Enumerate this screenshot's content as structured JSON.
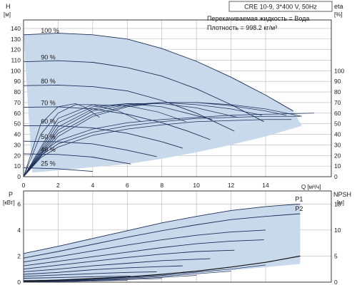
{
  "header": {
    "model": "CRE 10-9, 3*400 V, 50Hz",
    "liquid": "Перекачиваемая жидкость = Вода",
    "density": "Плотность = 998.2 кг/м³"
  },
  "colors": {
    "envelope": "#c9d9ec",
    "curve": "#1c2f5a",
    "grid": "#b5b5b5",
    "frame": "#3a3a3a"
  },
  "chart_data": [
    {
      "type": "line",
      "name": "head",
      "xlabel": "Q [м³/ч]",
      "ylabel_top": "H",
      "ylabel_unit": "[м]",
      "y2label_top": "eta",
      "y2label_unit": "[%]",
      "xlim": [
        0,
        17.8
      ],
      "ylim": [
        0,
        148
      ],
      "y2lim": [
        0,
        148
      ],
      "xticks": [
        0,
        2,
        4,
        6,
        8,
        10,
        12,
        14
      ],
      "yticks": [
        0,
        10,
        20,
        30,
        40,
        50,
        60,
        70,
        80,
        90,
        100,
        110,
        120,
        130,
        140
      ],
      "y2ticks": [
        0,
        10,
        20,
        30,
        40,
        50,
        60,
        70,
        80,
        90,
        100
      ],
      "grid": true,
      "envelope": {
        "x": [
          0,
          2,
          4,
          6,
          8,
          10,
          12,
          14,
          15.6,
          16.1,
          14,
          12,
          10,
          8,
          6,
          4,
          2,
          0.5
        ],
        "y": [
          134,
          135.5,
          134,
          130,
          121,
          109,
          94,
          77,
          62,
          48,
          38,
          30,
          23,
          17,
          12,
          9,
          6,
          4
        ]
      },
      "speed_curves": [
        {
          "label": "100 %",
          "x": [
            0,
            2,
            4,
            6,
            8,
            10,
            12,
            14,
            15.6
          ],
          "y": [
            134,
            135.5,
            134,
            130,
            121,
            109,
            94,
            77,
            62
          ]
        },
        {
          "label": "90 %",
          "x": [
            0,
            2,
            4,
            6,
            8,
            10,
            12,
            13.9
          ],
          "y": [
            108.5,
            109.5,
            108,
            103,
            95,
            83,
            68,
            52
          ]
        },
        {
          "label": "80 %",
          "x": [
            0,
            2,
            4,
            6,
            8,
            10,
            12.2
          ],
          "y": [
            86,
            86.5,
            85,
            81,
            72,
            60,
            43
          ]
        },
        {
          "label": "70 %",
          "x": [
            0,
            2,
            4,
            6,
            8,
            9.5,
            10.8
          ],
          "y": [
            65.5,
            66,
            64,
            59,
            51,
            43,
            35
          ]
        },
        {
          "label": "60 %",
          "x": [
            0,
            2,
            4,
            6,
            8,
            9.2
          ],
          "y": [
            48,
            48,
            46,
            41,
            33,
            27
          ]
        },
        {
          "label": "50 %",
          "x": [
            0,
            2,
            4,
            6,
            7.7
          ],
          "y": [
            33.5,
            33,
            31,
            25,
            19
          ]
        },
        {
          "label": "40 %",
          "x": [
            0,
            2,
            4,
            6.2
          ],
          "y": [
            21.5,
            21,
            18.5,
            12
          ]
        },
        {
          "label": "25 %",
          "x": [
            0,
            2,
            4
          ],
          "y": [
            8.5,
            7.5,
            5
          ]
        }
      ],
      "efficiency_curves": [
        {
          "x": [
            0,
            2,
            4,
            6,
            8,
            10,
            12,
            14,
            16.1
          ],
          "y": [
            0,
            38,
            57,
            66,
            70,
            70,
            68,
            64,
            57
          ]
        },
        {
          "x": [
            0,
            2,
            4,
            6,
            8,
            10,
            12,
            14,
            15.2
          ],
          "y": [
            0,
            41,
            59,
            67,
            70,
            70,
            67,
            62,
            58
          ]
        },
        {
          "x": [
            0,
            2,
            4,
            6,
            8,
            10,
            12,
            13.8
          ],
          "y": [
            0,
            44,
            62,
            68,
            70,
            68,
            64,
            58
          ]
        },
        {
          "x": [
            0,
            2,
            4,
            6,
            8,
            10,
            12.4
          ],
          "y": [
            0,
            47,
            64,
            69,
            69,
            65,
            56
          ]
        },
        {
          "x": [
            0,
            2,
            4,
            6,
            8,
            10.9
          ],
          "y": [
            0,
            51,
            66,
            69,
            66,
            54
          ]
        },
        {
          "x": [
            0,
            2,
            4,
            6,
            7.8,
            9.4
          ],
          "y": [
            0,
            55,
            68,
            67,
            61,
            52
          ]
        },
        {
          "x": [
            0,
            1,
            2,
            3,
            4,
            5.5,
            6.8
          ],
          "y": [
            0,
            40,
            60,
            68,
            68,
            62,
            52
          ]
        },
        {
          "x": [
            0,
            1,
            2,
            3,
            3.5,
            4.4
          ],
          "y": [
            0,
            50,
            66,
            69,
            66,
            56
          ]
        },
        {
          "x": [
            0,
            1,
            2,
            4,
            6,
            8,
            10,
            12,
            14,
            16.8
          ],
          "y": [
            0,
            22,
            34,
            45,
            51,
            54,
            56,
            58,
            59,
            60
          ]
        },
        {
          "x": [
            0,
            1,
            2,
            4,
            6,
            8,
            10,
            12,
            14,
            16
          ],
          "y": [
            0,
            20,
            31,
            42,
            48,
            52,
            55,
            56,
            57,
            57
          ]
        },
        {
          "x": [
            0,
            1,
            2,
            4,
            6,
            8,
            10,
            12,
            14,
            15.5
          ],
          "y": [
            0,
            18,
            28,
            39,
            45,
            49,
            52,
            53,
            54,
            54
          ]
        }
      ]
    },
    {
      "type": "line",
      "name": "power_npsh",
      "ylabel_top": "P",
      "ylabel_unit": "[кВт]",
      "y2label_top": "NPSH",
      "y2label_unit": "[м]",
      "xlim": [
        0,
        17.8
      ],
      "ylim": [
        0,
        7.0
      ],
      "y2lim": [
        0,
        17.5
      ],
      "yticks": [
        0,
        2,
        4,
        6
      ],
      "y2ticks": [
        0,
        5,
        10,
        15
      ],
      "grid": true,
      "envelope": {
        "x": [
          0,
          2,
          4,
          6,
          8,
          10,
          12,
          14,
          16,
          16,
          14,
          12,
          10,
          8,
          6,
          4,
          2,
          0
        ],
        "y": [
          2.2,
          2.75,
          3.35,
          3.95,
          4.55,
          5.05,
          5.5,
          5.8,
          6.0,
          1.4,
          1.15,
          0.9,
          0.65,
          0.45,
          0.3,
          0.18,
          0.1,
          0.05
        ]
      },
      "power_curves": [
        {
          "label": "P1",
          "x": [
            0,
            2,
            4,
            6,
            8,
            10,
            12,
            14,
            16
          ],
          "y": [
            2.2,
            2.75,
            3.35,
            3.95,
            4.55,
            5.05,
            5.5,
            5.8,
            6.0
          ]
        },
        {
          "label": "P2",
          "x": [
            0,
            2,
            4,
            6,
            8,
            10,
            12,
            14,
            16
          ],
          "y": [
            1.85,
            2.35,
            2.9,
            3.45,
            3.95,
            4.4,
            4.8,
            5.05,
            5.25
          ]
        },
        {
          "x": [
            0,
            2,
            4,
            6,
            8,
            10,
            12,
            14
          ],
          "y": [
            1.55,
            1.95,
            2.4,
            2.85,
            3.25,
            3.6,
            3.85,
            4.0
          ]
        },
        {
          "x": [
            0,
            2,
            4,
            6,
            8,
            10,
            12,
            13.9
          ],
          "y": [
            1.25,
            1.6,
            1.95,
            2.3,
            2.65,
            2.95,
            3.15,
            3.25
          ]
        },
        {
          "x": [
            0,
            2,
            4,
            6,
            8,
            10,
            12.2
          ],
          "y": [
            1.0,
            1.3,
            1.6,
            1.9,
            2.15,
            2.35,
            2.45
          ]
        },
        {
          "x": [
            0,
            2,
            4,
            6,
            8,
            10.8
          ],
          "y": [
            0.8,
            1.0,
            1.25,
            1.45,
            1.65,
            1.8
          ]
        },
        {
          "x": [
            0,
            2,
            4,
            6,
            8,
            9.2
          ],
          "y": [
            0.6,
            0.75,
            0.95,
            1.1,
            1.2,
            1.25
          ]
        },
        {
          "x": [
            0,
            2,
            4,
            6,
            7.7
          ],
          "y": [
            0.45,
            0.55,
            0.65,
            0.75,
            0.8
          ]
        },
        {
          "x": [
            0,
            2,
            4,
            6.2
          ],
          "y": [
            0.3,
            0.35,
            0.42,
            0.46
          ]
        },
        {
          "x": [
            0,
            2,
            4
          ],
          "y": [
            0.12,
            0.14,
            0.15
          ]
        }
      ],
      "npsh_curve": {
        "x": [
          0,
          2,
          4,
          6,
          8,
          10,
          12,
          14,
          16
        ],
        "y": [
          0.2,
          0.4,
          0.7,
          1.0,
          1.5,
          2.1,
          2.9,
          3.8,
          5.0
        ]
      },
      "npsh_fan": [
        {
          "x": [
            0,
            4,
            8,
            12,
            14
          ],
          "y": [
            0.15,
            0.55,
            1.3,
            2.5,
            3.3
          ]
        },
        {
          "x": [
            0,
            4,
            8,
            12
          ],
          "y": [
            0.12,
            0.45,
            1.1,
            2.1
          ]
        },
        {
          "x": [
            0,
            4,
            8,
            10
          ],
          "y": [
            0.1,
            0.35,
            0.9,
            1.3
          ]
        },
        {
          "x": [
            0,
            4,
            8
          ],
          "y": [
            0.08,
            0.3,
            0.7
          ]
        },
        {
          "x": [
            0,
            3,
            6
          ],
          "y": [
            0.05,
            0.15,
            0.35
          ]
        }
      ]
    }
  ]
}
